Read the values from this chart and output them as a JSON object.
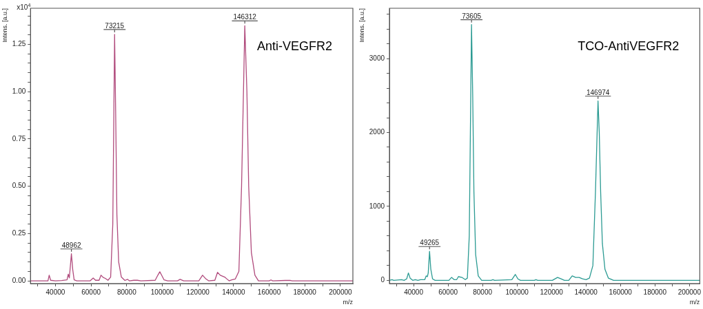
{
  "chart_data": [
    {
      "type": "line",
      "title": "Anti-VEGFR2",
      "xlabel": "m/z",
      "ylabel": "Intens. [a.u.]",
      "color": "#b04a7c",
      "marker": "none",
      "x": [
        26000,
        35800,
        36500,
        37300,
        40000,
        43500,
        46500,
        47200,
        47800,
        48962,
        49700,
        50500,
        52000,
        59500,
        61200,
        62500,
        64500,
        65600,
        66800,
        68000,
        69500,
        71000,
        72200,
        73215,
        73800,
        74500,
        75500,
        77000,
        79000,
        80500,
        81500,
        84000,
        86000,
        88000,
        96000,
        97500,
        98600,
        99600,
        101000,
        103000,
        108500,
        110000,
        112000,
        120500,
        122600,
        124500,
        126000,
        129500,
        131000,
        132500,
        135000,
        136500,
        137500,
        139000,
        141000,
        143000,
        144500,
        146312,
        147500,
        148500,
        150000,
        152000,
        154000,
        160000,
        161000,
        162000,
        169000,
        172000,
        173000,
        207000
      ],
      "values": [
        0,
        0,
        0.03,
        0.003,
        0,
        0.002,
        0.005,
        0.035,
        0.015,
        0.143,
        0.06,
        0.005,
        0,
        0,
        0.015,
        0.003,
        0.003,
        0.03,
        0.018,
        0.013,
        0.003,
        0.02,
        0.3,
        1.302,
        0.9,
        0.35,
        0.1,
        0.02,
        0.002,
        0.008,
        0,
        0.003,
        0.003,
        0,
        0.003,
        0.03,
        0.048,
        0.03,
        0.005,
        0,
        0,
        0.008,
        0,
        0,
        0.03,
        0.01,
        0,
        0.003,
        0.045,
        0.03,
        0.02,
        0.008,
        0,
        0.005,
        0.01,
        0.05,
        0.5,
        1.348,
        1.0,
        0.5,
        0.15,
        0.03,
        0,
        0,
        0.005,
        0,
        0.002,
        0.002,
        0,
        0
      ],
      "xlim": [
        26000,
        207000
      ],
      "ylim": [
        -0.015,
        1.44
      ],
      "xticks": [
        {
          "value": 30000,
          "label": null
        },
        40000,
        {
          "value": 50000,
          "label": null
        },
        60000,
        {
          "value": 70000,
          "label": null
        },
        80000,
        {
          "value": 90000,
          "label": null
        },
        100000,
        {
          "value": 110000,
          "label": null
        },
        120000,
        {
          "value": 130000,
          "label": null
        },
        140000,
        {
          "value": 150000,
          "label": null
        },
        160000,
        {
          "value": 170000,
          "label": null
        },
        180000,
        {
          "value": 190000,
          "label": null
        },
        200000
      ],
      "yticks": [
        {
          "value": 0,
          "label": "0.00"
        },
        {
          "value": 0.05,
          "label": null
        },
        {
          "value": 0.1,
          "label": null
        },
        {
          "value": 0.15,
          "label": null
        },
        {
          "value": 0.2,
          "label": null
        },
        {
          "value": 0.25,
          "label": "0.25"
        },
        {
          "value": 0.3,
          "label": null
        },
        {
          "value": 0.35,
          "label": null
        },
        {
          "value": 0.4,
          "label": null
        },
        {
          "value": 0.45,
          "label": null
        },
        {
          "value": 0.5,
          "label": "0.50"
        },
        {
          "value": 0.55,
          "label": null
        },
        {
          "value": 0.6,
          "label": null
        },
        {
          "value": 0.65,
          "label": null
        },
        {
          "value": 0.7,
          "label": null
        },
        {
          "value": 0.75,
          "label": "0.75"
        },
        {
          "value": 0.8,
          "label": null
        },
        {
          "value": 0.85,
          "label": null
        },
        {
          "value": 0.9,
          "label": null
        },
        {
          "value": 0.95,
          "label": null
        },
        {
          "value": 1.0,
          "label": "1.00"
        },
        {
          "value": 1.05,
          "label": null
        },
        {
          "value": 1.1,
          "label": null
        },
        {
          "value": 1.15,
          "label": null
        },
        {
          "value": 1.2,
          "label": null
        },
        {
          "value": 1.25,
          "label": "1.25"
        },
        {
          "value": 1.3,
          "label": null
        },
        {
          "value": 1.35,
          "label": null
        },
        {
          "value": 1.4,
          "label": null
        }
      ],
      "annotations": [
        "x10$^{4}$",
        {
          "text": "48962",
          "x": 48962,
          "y": 0.143
        },
        {
          "text": "73215",
          "x": 73215,
          "y": 1.302
        },
        {
          "text": "146312",
          "x": 146312,
          "y": 1.348
        }
      ]
    },
    {
      "type": "line",
      "title": "TCO-AntiVEGFR2",
      "xlabel": "m/z",
      "ylabel": "Intens. [a.u.]",
      "color": "#2a9a92",
      "marker": "none",
      "x": [
        26000,
        27500,
        28500,
        33000,
        34500,
        36000,
        37000,
        38000,
        39500,
        41000,
        42500,
        44000,
        46500,
        47300,
        48000,
        48500,
        49265,
        50000,
        51000,
        52500,
        60500,
        62000,
        63500,
        65000,
        66000,
        68000,
        70000,
        71200,
        72300,
        73605,
        74300,
        75000,
        76000,
        77500,
        79500,
        85000,
        86000,
        87000,
        97000,
        99000,
        100500,
        102000,
        110000,
        111000,
        112000,
        120500,
        123500,
        125500,
        127500,
        130000,
        132000,
        134000,
        136000,
        138000,
        140000,
        142000,
        144000,
        145500,
        146974,
        147700,
        148500,
        149500,
        151000,
        153000,
        156000,
        206000
      ],
      "values": [
        0,
        10,
        0,
        10,
        0,
        20,
        100,
        30,
        0,
        10,
        0,
        10,
        10,
        60,
        50,
        100,
        392,
        150,
        20,
        0,
        0,
        40,
        10,
        10,
        50,
        40,
        10,
        30,
        600,
        3460,
        2500,
        1200,
        350,
        60,
        0,
        0,
        10,
        0,
        10,
        80,
        20,
        0,
        0,
        10,
        0,
        0,
        40,
        20,
        0,
        0,
        60,
        40,
        40,
        20,
        10,
        30,
        200,
        1200,
        2426,
        2000,
        1200,
        500,
        150,
        30,
        0,
        0
      ],
      "xlim": [
        26000,
        206000
      ],
      "ylim": [
        -45,
        3680
      ],
      "xticks": [
        {
          "value": 30000,
          "label": null
        },
        40000,
        {
          "value": 50000,
          "label": null
        },
        60000,
        {
          "value": 70000,
          "label": null
        },
        80000,
        {
          "value": 90000,
          "label": null
        },
        100000,
        {
          "value": 110000,
          "label": null
        },
        120000,
        {
          "value": 130000,
          "label": null
        },
        140000,
        {
          "value": 150000,
          "label": null
        },
        160000,
        {
          "value": 170000,
          "label": null
        },
        180000,
        {
          "value": 190000,
          "label": null
        },
        200000
      ],
      "yticks": [
        0,
        {
          "value": 200,
          "label": null
        },
        {
          "value": 400,
          "label": null
        },
        {
          "value": 600,
          "label": null
        },
        {
          "value": 800,
          "label": null
        },
        1000,
        {
          "value": 1200,
          "label": null
        },
        {
          "value": 1400,
          "label": null
        },
        {
          "value": 1600,
          "label": null
        },
        {
          "value": 1800,
          "label": null
        },
        2000,
        {
          "value": 2200,
          "label": null
        },
        {
          "value": 2400,
          "label": null
        },
        {
          "value": 2600,
          "label": null
        },
        {
          "value": 2800,
          "label": null
        },
        3000,
        {
          "value": 3200,
          "label": null
        },
        {
          "value": 3400,
          "label": null
        },
        {
          "value": 3600,
          "label": null
        }
      ],
      "annotations": [
        {
          "text": "49265",
          "x": 49265,
          "y": 392
        },
        {
          "text": "73605",
          "x": 73605,
          "y": 3460
        },
        {
          "text": "146974",
          "x": 146974,
          "y": 2426
        }
      ]
    }
  ]
}
